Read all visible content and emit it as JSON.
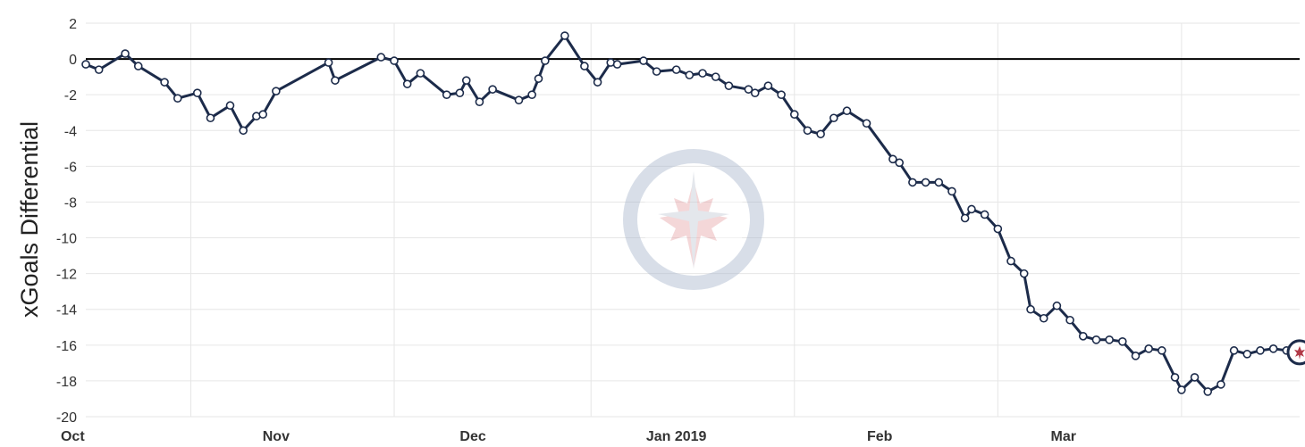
{
  "chart_data": {
    "type": "line",
    "title": "",
    "ylabel": "xGoals Differential",
    "xlabel": "",
    "ylim": [
      -20,
      2
    ],
    "yticks": [
      2,
      0,
      -2,
      -4,
      -6,
      -8,
      -10,
      -12,
      -14,
      -16,
      -18,
      -20
    ],
    "ytick_labels": [
      "2",
      "0",
      "-2",
      "-4",
      "-6",
      "-8",
      "-10",
      "-12",
      "-14",
      "-16",
      "-18",
      "-20"
    ],
    "xlim": [
      "2018-10-03",
      "2019-04-06"
    ],
    "xtick_dates": [
      "2018-10-01",
      "2018-11-01",
      "2018-12-01",
      "2019-01-01",
      "2019-02-01",
      "2019-03-01"
    ],
    "xtick_labels": [
      "Oct",
      "Nov",
      "Dec",
      "Jan 2019",
      "Feb",
      "Mar"
    ],
    "vertical_gridlines": [
      "2018-10-19",
      "2018-11-19",
      "2018-12-19",
      "2019-01-19",
      "2019-02-19",
      "2019-03-19"
    ],
    "grid": true,
    "zero_line": true,
    "colors": {
      "line": "#1c2b4a",
      "marker_fill": "#ffffff",
      "grid": "#e6e6e6",
      "zero": "#000000"
    },
    "watermark": "winnipeg-jets-logo",
    "end_marker": "winnipeg-jets-logo",
    "series": [
      {
        "x": [
          "2018-10-03",
          "2018-10-05",
          "2018-10-09",
          "2018-10-11",
          "2018-10-15",
          "2018-10-17",
          "2018-10-20",
          "2018-10-22",
          "2018-10-25",
          "2018-10-27",
          "2018-10-29",
          "2018-10-30",
          "2018-11-01",
          "2018-11-09",
          "2018-11-10",
          "2018-11-17",
          "2018-11-19",
          "2018-11-21",
          "2018-11-23",
          "2018-11-27",
          "2018-11-29",
          "2018-11-30",
          "2018-12-02",
          "2018-12-04",
          "2018-12-08",
          "2018-12-10",
          "2018-12-11",
          "2018-12-12",
          "2018-12-15",
          "2018-12-18",
          "2018-12-20",
          "2018-12-22",
          "2018-12-23",
          "2018-12-27",
          "2018-12-29",
          "2019-01-01",
          "2019-01-03",
          "2019-01-05",
          "2019-01-07",
          "2019-01-09",
          "2019-01-12",
          "2019-01-13",
          "2019-01-15",
          "2019-01-17",
          "2019-01-19",
          "2019-01-21",
          "2019-01-23",
          "2019-01-25",
          "2019-01-27",
          "2019-01-30",
          "2019-02-03",
          "2019-02-04",
          "2019-02-06",
          "2019-02-08",
          "2019-02-10",
          "2019-02-12",
          "2019-02-14",
          "2019-02-15",
          "2019-02-17",
          "2019-02-19",
          "2019-02-21",
          "2019-02-23",
          "2019-02-24",
          "2019-02-26",
          "2019-02-28",
          "2019-03-02",
          "2019-03-04",
          "2019-03-06",
          "2019-03-08",
          "2019-03-10",
          "2019-03-12",
          "2019-03-14",
          "2019-03-16",
          "2019-03-18",
          "2019-03-19",
          "2019-03-21",
          "2019-03-23",
          "2019-03-25",
          "2019-03-27",
          "2019-03-29",
          "2019-03-31",
          "2019-04-02",
          "2019-04-04",
          "2019-04-06"
        ],
        "y": [
          -0.3,
          -0.6,
          0.3,
          -0.4,
          -1.3,
          -2.2,
          -1.9,
          -3.3,
          -2.6,
          -4.0,
          -3.2,
          -3.1,
          -1.8,
          -0.2,
          -1.2,
          0.1,
          -0.1,
          -1.4,
          -0.8,
          -2.0,
          -1.9,
          -1.2,
          -2.4,
          -1.7,
          -2.3,
          -2.0,
          -1.1,
          -0.1,
          1.3,
          -0.4,
          -1.3,
          -0.2,
          -0.3,
          -0.1,
          -0.7,
          -0.6,
          -0.9,
          -0.8,
          -1.0,
          -1.5,
          -1.7,
          -1.9,
          -1.5,
          -2.0,
          -3.1,
          -4.0,
          -4.2,
          -3.3,
          -2.9,
          -3.6,
          -5.6,
          -5.8,
          -6.9,
          -6.9,
          -6.9,
          -7.4,
          -8.9,
          -8.4,
          -8.7,
          -9.5,
          -11.3,
          -12.0,
          -14.0,
          -14.5,
          -13.8,
          -14.6,
          -15.5,
          -15.7,
          -15.7,
          -15.8,
          -16.6,
          -16.2,
          -16.3,
          -17.8,
          -18.5,
          -17.8,
          -18.6,
          -18.2,
          -16.3,
          -16.5,
          -16.3,
          -16.2,
          -16.3,
          -16.4
        ]
      }
    ]
  }
}
